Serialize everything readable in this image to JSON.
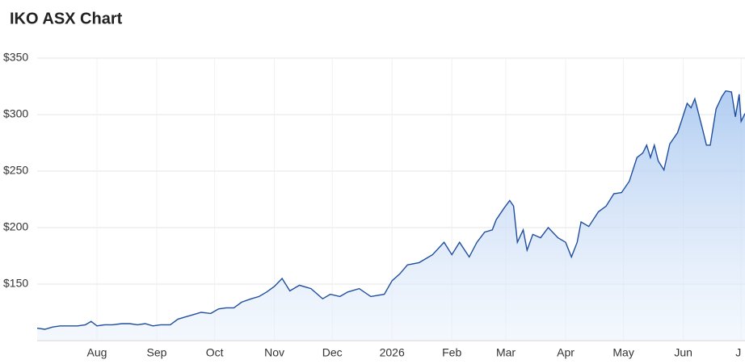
{
  "chart_data": {
    "type": "area",
    "title": "IKO ASX Chart",
    "x": [
      0,
      4,
      8,
      12,
      16,
      21,
      25,
      28,
      31,
      35,
      39,
      44,
      48,
      52,
      56,
      60,
      64,
      69,
      73,
      77,
      81,
      85,
      90,
      94,
      98,
      102,
      106,
      111,
      115,
      119,
      123,
      127,
      131,
      136,
      142,
      148,
      152,
      157,
      161,
      167,
      173,
      180,
      184,
      188,
      192,
      198,
      205,
      211,
      215,
      219,
      224,
      228,
      232,
      236,
      238,
      242,
      245,
      247,
      249,
      252,
      254,
      257,
      261,
      265,
      270,
      274,
      277,
      280,
      282,
      286,
      291,
      295,
      299,
      303,
      307,
      311,
      314,
      316,
      318,
      320,
      322,
      325,
      328,
      332,
      334,
      337,
      339,
      341,
      345,
      347,
      349,
      352,
      355,
      357,
      360,
      362,
      364,
      365,
      367
    ],
    "series": [
      {
        "name": "IKO",
        "color": "#1f4e9e",
        "values": [
          111,
          110,
          112,
          113,
          113,
          113,
          114,
          117,
          113,
          114,
          114,
          115,
          115,
          114,
          115,
          113,
          114,
          114,
          119,
          121,
          123,
          125,
          124,
          128,
          129,
          129,
          134,
          137,
          139,
          143,
          148,
          155,
          144,
          149,
          146,
          137,
          141,
          139,
          143,
          146,
          139,
          141,
          153,
          159,
          167,
          169,
          176,
          187,
          176,
          187,
          174,
          187,
          196,
          198,
          207,
          217,
          224,
          219,
          187,
          198,
          180,
          194,
          191,
          200,
          191,
          187,
          174,
          187,
          205,
          201,
          214,
          219,
          230,
          231,
          241,
          262,
          266,
          273,
          262,
          273,
          259,
          251,
          274,
          284,
          294,
          310,
          306,
          314,
          287,
          273,
          273,
          305,
          316,
          321,
          320,
          298,
          318,
          294,
          301
        ]
      }
    ],
    "xlim": [
      0,
      367
    ],
    "xticks": [
      {
        "value": 31,
        "label": "Aug"
      },
      {
        "value": 62,
        "label": "Sep"
      },
      {
        "value": 92,
        "label": "Oct"
      },
      {
        "value": 123,
        "label": "Nov"
      },
      {
        "value": 153,
        "label": "Dec"
      },
      {
        "value": 184,
        "label": "2026"
      },
      {
        "value": 215,
        "label": "Feb"
      },
      {
        "value": 243,
        "label": "Mar"
      },
      {
        "value": 274,
        "label": "Apr"
      },
      {
        "value": 304,
        "label": "May"
      },
      {
        "value": 335,
        "label": "Jun"
      },
      {
        "value": 365,
        "label": "J"
      }
    ],
    "ylim": [
      100,
      350
    ],
    "yticks": [
      {
        "value": 150,
        "label": "$150"
      },
      {
        "value": 200,
        "label": "$200"
      },
      {
        "value": 250,
        "label": "$250"
      },
      {
        "value": 300,
        "label": "$300"
      },
      {
        "value": 350,
        "label": "$350"
      }
    ],
    "grid": true
  }
}
